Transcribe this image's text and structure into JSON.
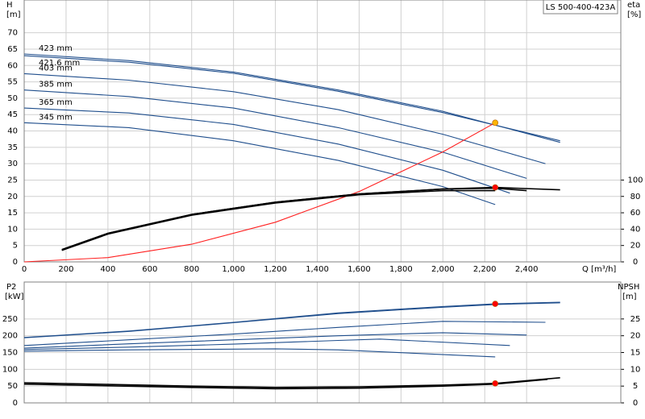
{
  "chart_data": [
    {
      "type": "line",
      "title": "LS 500-400-423A",
      "ylabel": "H",
      "yunit": "[m]",
      "y2label": "eta",
      "y2unit": "[%]",
      "xlabel": "Q [m³/h]",
      "xlim": [
        0,
        2850
      ],
      "xticks": [
        0,
        200,
        400,
        600,
        800,
        {
          "value": 1000,
          "label": "1,000"
        },
        {
          "value": 1200,
          "label": "1,200"
        },
        {
          "value": 1400,
          "label": "1,400"
        },
        {
          "value": 1600,
          "label": "1,600"
        },
        {
          "value": 1800,
          "label": "1,800"
        },
        {
          "value": 2000,
          "label": "2,000"
        },
        {
          "value": 2200,
          "label": "2,200"
        },
        {
          "value": 2400,
          "label": "2,400"
        }
      ],
      "ylim": [
        0,
        80
      ],
      "yticks": [
        0,
        5,
        10,
        15,
        20,
        25,
        30,
        35,
        40,
        45,
        50,
        55,
        60,
        65,
        70
      ],
      "y2lim": [
        0,
        320
      ],
      "y2ticks": [
        0,
        20,
        40,
        60,
        80,
        100
      ],
      "grid": true,
      "series": [
        {
          "name": "423 mm",
          "color": "#1f4e8c",
          "x": [
            0,
            500,
            1000,
            1500,
            2000,
            2560
          ],
          "values": [
            63.5,
            61.5,
            58,
            52.5,
            46,
            36.5
          ]
        },
        {
          "name": "421.6 mm",
          "color": "#1f4e8c",
          "label_below": true,
          "x": [
            0,
            500,
            1000,
            1500,
            2000,
            2560
          ],
          "values": [
            63,
            61,
            57.6,
            52.1,
            45.6,
            37
          ]
        },
        {
          "name": "403 mm",
          "color": "#1f4e8c",
          "x": [
            0,
            500,
            1000,
            1500,
            2000,
            2490
          ],
          "values": [
            57.5,
            55.5,
            52,
            46.5,
            39,
            30
          ]
        },
        {
          "name": "385 mm",
          "color": "#1f4e8c",
          "x": [
            0,
            500,
            1000,
            1500,
            2000,
            2400
          ],
          "values": [
            52.5,
            50.5,
            47,
            41,
            33.5,
            25.5
          ]
        },
        {
          "name": "365 mm",
          "color": "#1f4e8c",
          "x": [
            0,
            500,
            1000,
            1500,
            2000,
            2320
          ],
          "values": [
            47,
            45.5,
            42,
            36,
            28,
            21
          ]
        },
        {
          "name": "345 mm",
          "color": "#1f4e8c",
          "x": [
            0,
            500,
            1000,
            1500,
            2000,
            2250
          ],
          "values": [
            42.5,
            41,
            37,
            31,
            23,
            17.5
          ]
        },
        {
          "color": "#ff2020",
          "x": [
            0,
            400,
            800,
            1200,
            1600,
            2000,
            2250
          ],
          "values": [
            0,
            1.3,
            5.4,
            12.1,
            21.5,
            33.6,
            42.5
          ]
        },
        {
          "color": "#000000",
          "axis": "y2",
          "x": [
            180,
            400,
            800,
            1200,
            1600,
            2000,
            2250,
            2560
          ],
          "values": [
            15,
            35,
            58,
            73,
            83,
            89,
            91,
            88
          ]
        },
        {
          "color": "#000000",
          "axis": "y2",
          "x": [
            180,
            400,
            800,
            1200,
            1600,
            2000,
            2250,
            2400
          ],
          "values": [
            15,
            35,
            58,
            73,
            83,
            89,
            90,
            87
          ]
        },
        {
          "color": "#000000",
          "axis": "y2",
          "x": [
            180,
            400,
            800,
            1200,
            1600,
            2000,
            2250
          ],
          "values": [
            14,
            34,
            57,
            72,
            82,
            87,
            87
          ]
        }
      ],
      "points": [
        {
          "x": 2250,
          "y": 42.5,
          "color": "#ffb400"
        },
        {
          "x": 2250,
          "y": 91,
          "color": "#ff0000",
          "axis": "y2"
        }
      ]
    },
    {
      "type": "line",
      "ylabel": "P2",
      "yunit": "[kW]",
      "y2label": "NPSH",
      "y2unit": "[m]",
      "xlim": [
        0,
        2850
      ],
      "xticks": [
        0,
        200,
        400,
        600,
        800,
        1000,
        1200,
        1400,
        1600,
        1800,
        2000,
        2200,
        2400
      ],
      "ylim": [
        0,
        360
      ],
      "yticks": [
        0,
        50,
        100,
        150,
        200,
        250
      ],
      "y2lim": [
        0,
        36
      ],
      "y2ticks": [
        0,
        5,
        10,
        15,
        20,
        25
      ],
      "grid": true,
      "series": [
        {
          "color": "#1f4e8c",
          "x": [
            0,
            500,
            1000,
            1500,
            2000,
            2250,
            2560
          ],
          "values": [
            195,
            214,
            240,
            268,
            287,
            295,
            300
          ]
        },
        {
          "color": "#1f4e8c",
          "x": [
            0,
            500,
            1000,
            1500,
            2000,
            2250,
            2560
          ],
          "values": [
            194,
            213,
            239,
            266,
            285,
            293,
            298
          ]
        },
        {
          "color": "#1f4e8c",
          "x": [
            0,
            500,
            1000,
            1500,
            2000,
            2490
          ],
          "values": [
            171,
            188,
            205,
            225,
            243,
            240
          ]
        },
        {
          "color": "#1f4e8c",
          "x": [
            0,
            500,
            1000,
            1500,
            2000,
            2400
          ],
          "values": [
            163,
            176,
            188,
            200,
            209,
            202
          ]
        },
        {
          "color": "#1f4e8c",
          "x": [
            0,
            500,
            1000,
            1500,
            1700,
            2320
          ],
          "values": [
            159,
            166,
            175,
            186,
            190,
            171
          ]
        },
        {
          "color": "#1f4e8c",
          "x": [
            0,
            500,
            1000,
            1200,
            1500,
            2250
          ],
          "values": [
            154,
            158,
            160,
            161,
            158,
            137
          ]
        },
        {
          "color": "#000000",
          "axis": "y2",
          "x": [
            0,
            400,
            800,
            1200,
            1600,
            2000,
            2250,
            2560
          ],
          "values": [
            6,
            5.5,
            5,
            4.6,
            4.8,
            5.3,
            5.8,
            7.5
          ]
        },
        {
          "color": "#000000",
          "axis": "y2",
          "x": [
            0,
            400,
            800,
            1200,
            1600,
            2000,
            2250,
            2500
          ],
          "values": [
            5.6,
            5.1,
            4.6,
            4.2,
            4.4,
            5,
            5.6,
            7
          ]
        }
      ],
      "points": [
        {
          "x": 2250,
          "y": 295,
          "color": "#ff0000"
        },
        {
          "x": 2250,
          "y": 5.8,
          "color": "#ff0000",
          "axis": "y2"
        }
      ]
    }
  ]
}
